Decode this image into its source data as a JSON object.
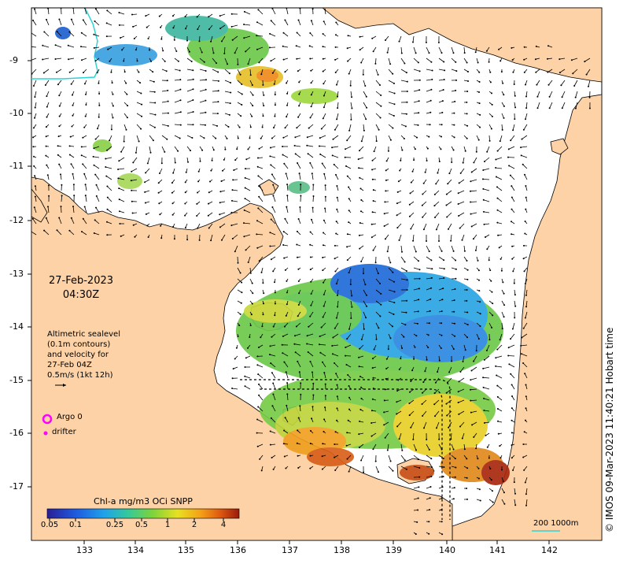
{
  "date_line": "27-Feb-2023",
  "time_line": "04:30Z",
  "legend": {
    "lines": [
      "Altimetric sealevel",
      "(0.1m contours)",
      "and velocity for",
      "27-Feb 04Z",
      "0.5m/s (1kt 12h)"
    ],
    "argo_label": "Argo 0",
    "drifter_label": "drifter"
  },
  "colorbar": {
    "title": "Chl-a mg/m3 OCi SNPP",
    "ticks": [
      "0.05",
      "0.1",
      "0.25",
      "0.5",
      "1",
      "2",
      "4"
    ]
  },
  "scale_bar_label": "200  1000m",
  "credit": "© IMOS 09-Mar-2023 11:40:21 Hobart time",
  "axes": {
    "lon_ticks": [
      "133",
      "134",
      "135",
      "136",
      "137",
      "138",
      "139",
      "140",
      "141",
      "142"
    ],
    "lat_ticks": [
      "-9",
      "-10",
      "-11",
      "-12",
      "-13",
      "-14",
      "-15",
      "-16",
      "-17"
    ]
  },
  "colors": {
    "land": "#fcd2a6",
    "sea": "#ffffff",
    "argo": "#ff00ff",
    "drifter": "#ff00ff",
    "coast": "#000000",
    "contour": "#2ed3d3"
  }
}
